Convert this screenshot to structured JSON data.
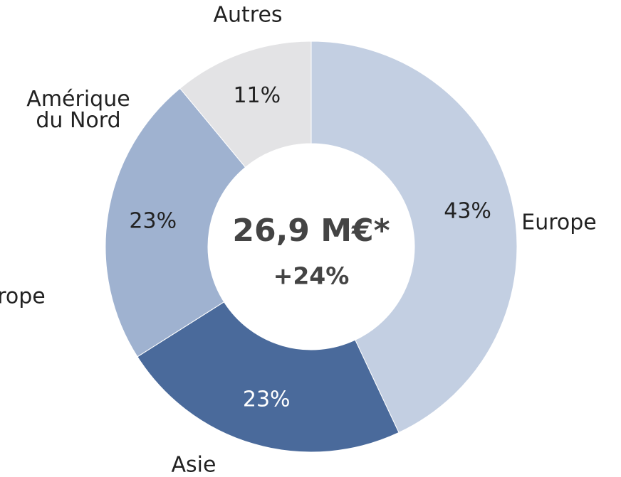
{
  "chart_data": {
    "type": "donut",
    "categories": [
      "Europe",
      "Asie",
      "Amérique du Nord",
      "Autres"
    ],
    "values": [
      43,
      23,
      23,
      11
    ],
    "value_labels": [
      "43%",
      "23%",
      "23%",
      "11%"
    ],
    "colors": [
      "#c3cfe2",
      "#4a6a9b",
      "#9fb2d0",
      "#e3e3e5"
    ],
    "center_title": "26,9 M€*",
    "center_subtitle": "+24%",
    "annotation": "rope"
  }
}
